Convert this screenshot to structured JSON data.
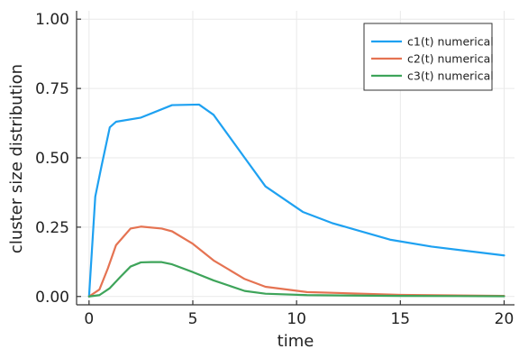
{
  "chart_data": {
    "type": "line",
    "title": "",
    "xlabel": "time",
    "ylabel": "cluster size distribution",
    "xlim": [
      -0.6,
      20.5
    ],
    "ylim": [
      -0.03,
      1.03
    ],
    "xticks": [
      0,
      5,
      10,
      15,
      20
    ],
    "xtick_labels": [
      "0",
      "5",
      "10",
      "15",
      "20"
    ],
    "yticks": [
      0.0,
      0.25,
      0.5,
      0.75,
      1.0
    ],
    "ytick_labels": [
      "0.00",
      "0.25",
      "0.50",
      "0.75",
      "1.00"
    ],
    "grid": true,
    "legend_position": "top-right",
    "series": [
      {
        "name": "c1(t) numerical",
        "color": "#1ea1f1",
        "x": [
          0,
          0.3,
          0.6,
          1.0,
          1.3,
          2.5,
          4.0,
          5.3,
          6.0,
          7.5,
          8.5,
          10.3,
          11.7,
          14.5,
          16.5,
          20.0
        ],
        "y": [
          0.0,
          0.36,
          0.47,
          0.61,
          0.63,
          0.645,
          0.69,
          0.692,
          0.655,
          0.5,
          0.397,
          0.305,
          0.265,
          0.205,
          0.18,
          0.148
        ]
      },
      {
        "name": "c2(t) numerical",
        "color": "#e57352",
        "x": [
          0,
          0.5,
          0.9,
          1.3,
          2.0,
          2.5,
          3.5,
          4.0,
          5.0,
          6.0,
          7.5,
          8.5,
          10.5,
          15.0,
          20.0
        ],
        "y": [
          0.0,
          0.025,
          0.1,
          0.185,
          0.245,
          0.252,
          0.245,
          0.235,
          0.19,
          0.13,
          0.063,
          0.035,
          0.016,
          0.006,
          0.002
        ]
      },
      {
        "name": "c3(t) numerical",
        "color": "#3ea45a",
        "x": [
          0,
          0.5,
          1.0,
          1.5,
          2.0,
          2.5,
          3.0,
          3.5,
          4.0,
          5.0,
          6.0,
          7.5,
          8.5,
          10.5,
          15.0,
          20.0
        ],
        "y": [
          0.0,
          0.005,
          0.03,
          0.07,
          0.108,
          0.123,
          0.124,
          0.124,
          0.116,
          0.088,
          0.058,
          0.02,
          0.01,
          0.005,
          0.002,
          0.001
        ]
      }
    ]
  }
}
